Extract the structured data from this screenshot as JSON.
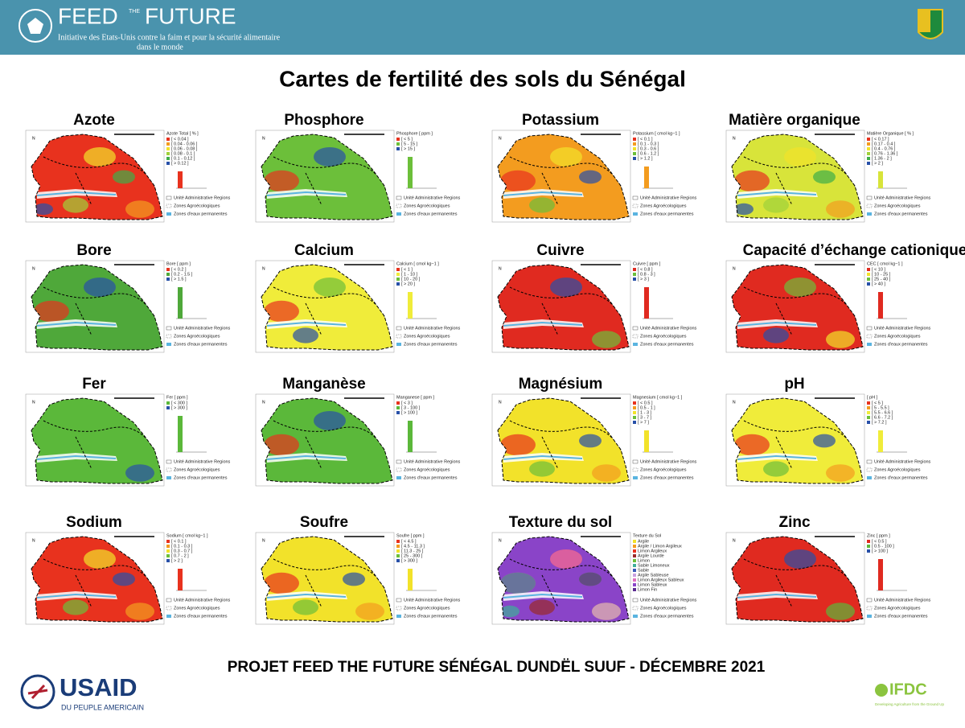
{
  "header": {
    "logo_left": "FEED",
    "logo_middle": "THE",
    "logo_right": "FUTURE",
    "tagline_1": "Initiative des Etats-Unis contre la faim et pour la sécurité alimentaire",
    "tagline_2": "dans le monde"
  },
  "title": "Cartes de fertilité des sols du Sénégal",
  "north_label": "N",
  "common_legend": [
    "Unité Administrative Regions",
    "Zones Agroécologiques",
    "Zones d'eaux permanentes"
  ],
  "maps": [
    {
      "title": "Azote",
      "legend_title": "Azote Total [ % ]",
      "map_color": "#e8321e",
      "classes": [
        {
          "label": "[ < 0.04 ]",
          "color": "#e8321e"
        },
        {
          "label": "[ 0.04 - 0.06 ]",
          "color": "#f39c1f"
        },
        {
          "label": "[ 0.06 - 0.08 ]",
          "color": "#f2e22a"
        },
        {
          "label": "[ 0.08 - 0.1 ]",
          "color": "#9fd13a"
        },
        {
          "label": "[ 0.1 - 0.12 ]",
          "color": "#3fae49"
        },
        {
          "label": "[ > 0.12 ]",
          "color": "#2850a8"
        }
      ]
    },
    {
      "title": "Phosphore",
      "legend_title": "Phosphore [ ppm ]",
      "map_color": "#6cbf3a",
      "classes": [
        {
          "label": "[ < 5 ]",
          "color": "#e8321e"
        },
        {
          "label": "[ 5 - 15 ]",
          "color": "#6cbf3a"
        },
        {
          "label": "[ > 15 ]",
          "color": "#2850a8"
        }
      ]
    },
    {
      "title": "Potassium",
      "legend_title": "Potassium [ cmol kg−1 ]",
      "map_color": "#f39c1f",
      "classes": [
        {
          "label": "[ < 0.1 ]",
          "color": "#e8321e"
        },
        {
          "label": "[ 0.1 - 0.3 ]",
          "color": "#f39c1f"
        },
        {
          "label": "[ 0.3 - 0.6 ]",
          "color": "#f2e22a"
        },
        {
          "label": "[ 0.6 - 1.2 ]",
          "color": "#6cbf3a"
        },
        {
          "label": "[ > 1.2 ]",
          "color": "#2850a8"
        }
      ]
    },
    {
      "title": "Matière organique",
      "legend_title": "Matière Organique [ % ]",
      "map_color": "#d8e43a",
      "classes": [
        {
          "label": "[ < 0.17 ]",
          "color": "#e8321e"
        },
        {
          "label": "[ 0.17 - 0.4 ]",
          "color": "#f39c1f"
        },
        {
          "label": "[ 0.4 - 0.76 ]",
          "color": "#f2e22a"
        },
        {
          "label": "[ 0.76 - 1.36 ]",
          "color": "#9fd13a"
        },
        {
          "label": "[ 1.36 - 2 ]",
          "color": "#3fae49"
        },
        {
          "label": "[ > 2 ]",
          "color": "#2850a8"
        }
      ]
    },
    {
      "title": "Bore",
      "legend_title": "Bore [ ppm ]",
      "map_color": "#4fa83a",
      "classes": [
        {
          "label": "[ < 0.2 ]",
          "color": "#e8321e"
        },
        {
          "label": "[ 0.2 - 1.5 ]",
          "color": "#4fa83a"
        },
        {
          "label": "[ > 1.5 ]",
          "color": "#2850a8"
        }
      ]
    },
    {
      "title": "Calcium",
      "legend_title": "Calcium [ cmol kg−1 ]",
      "map_color": "#f0ec3a",
      "classes": [
        {
          "label": "[ < 1 ]",
          "color": "#e8321e"
        },
        {
          "label": "[ 1 - 10 ]",
          "color": "#f0ec3a"
        },
        {
          "label": "[ 10 - 20 ]",
          "color": "#6cbf3a"
        },
        {
          "label": "[ > 20 ]",
          "color": "#2850a8"
        }
      ]
    },
    {
      "title": "Cuivre",
      "legend_title": "Cuivre [ ppm ]",
      "map_color": "#e02a20",
      "classes": [
        {
          "label": "[ < 0.8 ]",
          "color": "#e02a20"
        },
        {
          "label": "[ 0.8 - 3 ]",
          "color": "#6cbf3a"
        },
        {
          "label": "[ > 3 ]",
          "color": "#2850a8"
        }
      ]
    },
    {
      "title": "Capacité d’échange cationique",
      "legend_title": "CEC [ cmol kg−1 ]",
      "map_color": "#e02a20",
      "classes": [
        {
          "label": "[ < 10 ]",
          "color": "#e02a20"
        },
        {
          "label": "[ 10 - 25 ]",
          "color": "#f2e22a"
        },
        {
          "label": "[ 25 - 40 ]",
          "color": "#6cbf3a"
        },
        {
          "label": "[ > 40 ]",
          "color": "#2850a8"
        }
      ]
    },
    {
      "title": "Fer",
      "legend_title": "Fer [ ppm ]",
      "map_color": "#5bb83a",
      "classes": [
        {
          "label": "[ < 300 ]",
          "color": "#5bb83a"
        },
        {
          "label": "[ > 300 ]",
          "color": "#2850a8"
        }
      ]
    },
    {
      "title": "Manganèse",
      "legend_title": "Manganese [ ppm ]",
      "map_color": "#5bb83a",
      "classes": [
        {
          "label": "[ < 3 ]",
          "color": "#e8321e"
        },
        {
          "label": "[ 3 - 100 ]",
          "color": "#5bb83a"
        },
        {
          "label": "[ > 100 ]",
          "color": "#2850a8"
        }
      ]
    },
    {
      "title": "Magnésium",
      "legend_title": "Magnesium [ cmol kg−1 ]",
      "map_color": "#f2e22a",
      "classes": [
        {
          "label": "[ < 0.5 ]",
          "color": "#e8321e"
        },
        {
          "label": "[ 0.5 - 1 ]",
          "color": "#f39c1f"
        },
        {
          "label": "[ 1 - 3 ]",
          "color": "#f2e22a"
        },
        {
          "label": "[ 3 - 7 ]",
          "color": "#6cbf3a"
        },
        {
          "label": "[ > 7 ]",
          "color": "#2850a8"
        }
      ]
    },
    {
      "title": "pH",
      "legend_title": "[ pH ]",
      "map_color": "#f0ec3a",
      "classes": [
        {
          "label": "[ < 5 ]",
          "color": "#e8321e"
        },
        {
          "label": "[ 5 - 5.5 ]",
          "color": "#f39c1f"
        },
        {
          "label": "[ 5.5 - 6.6 ]",
          "color": "#f0ec3a"
        },
        {
          "label": "[ 6.6 - 7.2 ]",
          "color": "#6cbf3a"
        },
        {
          "label": "[ > 7.2 ]",
          "color": "#2850a8"
        }
      ]
    },
    {
      "title": "Sodium",
      "legend_title": "Sodium [ cmol kg−1 ]",
      "map_color": "#e8321e",
      "classes": [
        {
          "label": "[ < 0.1 ]",
          "color": "#e8321e"
        },
        {
          "label": "[ 0.1 - 0.3 ]",
          "color": "#f39c1f"
        },
        {
          "label": "[ 0.3 - 0.7 ]",
          "color": "#f2e22a"
        },
        {
          "label": "[ 0.7 - 2 ]",
          "color": "#6cbf3a"
        },
        {
          "label": "[ > 2 ]",
          "color": "#2850a8"
        }
      ]
    },
    {
      "title": "Soufre",
      "legend_title": "Soufre [ ppm ]",
      "map_color": "#f2e22a",
      "classes": [
        {
          "label": "[ < 4.5 ]",
          "color": "#e8321e"
        },
        {
          "label": "[ 4.5 - 11.3 ]",
          "color": "#f39c1f"
        },
        {
          "label": "[ 11.3 - 25 ]",
          "color": "#f2e22a"
        },
        {
          "label": "[ 25 - 300 ]",
          "color": "#6cbf3a"
        },
        {
          "label": "[ > 300 ]",
          "color": "#2850a8"
        }
      ]
    },
    {
      "title": "Texture du sol",
      "legend_title": "Texture du Sol",
      "map_color": "#8a44c8",
      "classes": [
        {
          "label": "Argile",
          "color": "#f2e22a"
        },
        {
          "label": "Argile / Limon Argileux",
          "color": "#f39c1f"
        },
        {
          "label": "Limon Argileux",
          "color": "#e8321e"
        },
        {
          "label": "Argile Lourde",
          "color": "#9a2a2a"
        },
        {
          "label": "Limon",
          "color": "#6cbf3a"
        },
        {
          "label": "Sable Limoneux",
          "color": "#3fae99"
        },
        {
          "label": "Sable",
          "color": "#3a5ab8"
        },
        {
          "label": "Argile Sableuse",
          "color": "#c8a0e0"
        },
        {
          "label": "Limon Argileux Sableux",
          "color": "#e070c0"
        },
        {
          "label": "Limon Sableux",
          "color": "#8a44c8"
        },
        {
          "label": "Limon Fin",
          "color": "#5a2a90"
        }
      ]
    },
    {
      "title": "Zinc",
      "legend_title": "Zinc [ ppm ]",
      "map_color": "#e02a20",
      "classes": [
        {
          "label": "[ < 0.5 ]",
          "color": "#e02a20"
        },
        {
          "label": "[ 0.5 - 100 ]",
          "color": "#5bb83a"
        },
        {
          "label": "[ > 100 ]",
          "color": "#2850a8"
        }
      ]
    }
  ],
  "footer": {
    "project": "PROJET FEED THE FUTURE SÉNÉGAL DUNDËL SUUF - DÉCEMBRE 2021",
    "usaid": "USAID",
    "usaid_tagline": "DU PEUPLE AMERICAIN",
    "ifdc": "IFDC",
    "ifdc_tagline": "Developing Agriculture from the Ground Up"
  }
}
